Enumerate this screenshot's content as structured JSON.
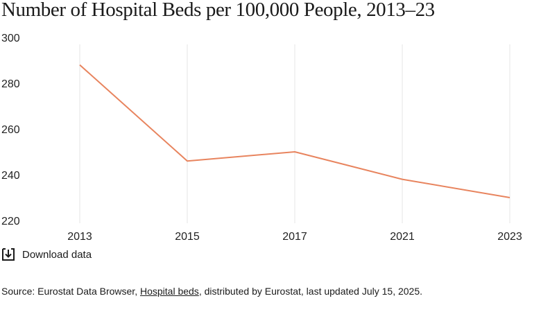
{
  "chart_data": {
    "type": "line",
    "title": "Number of Hospital Beds per 100,000 People, 2013–23",
    "categories": [
      "2013",
      "2015",
      "2017",
      "2021",
      "2023"
    ],
    "series": [
      {
        "values": [
          288,
          246,
          250,
          238,
          230
        ]
      }
    ],
    "ylim": [
      220,
      300
    ],
    "yticks": [
      220,
      240,
      260,
      280,
      300
    ],
    "grid": "vertical",
    "line_color": "#e8845e"
  },
  "download": {
    "label": "Download data",
    "icon": "download-icon"
  },
  "source": {
    "prefix": "Source: Eurostat Data Browser, ",
    "link_text": "Hospital beds",
    "suffix": ", distributed by Eurostat, last updated July 15, 2025."
  }
}
